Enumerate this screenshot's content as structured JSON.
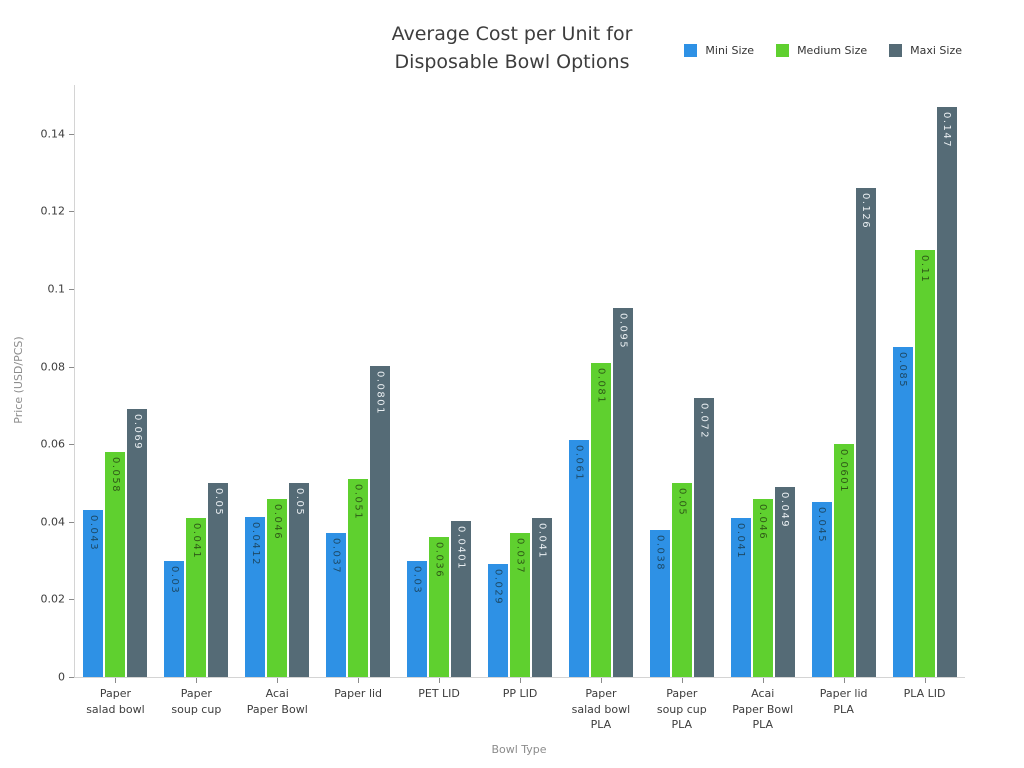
{
  "chart_data": {
    "type": "bar",
    "title_lines": [
      "Average Cost per Unit for",
      "Disposable Bowl Options"
    ],
    "xlabel": "Bowl Type",
    "ylabel": "Price (USD/PCS)",
    "grid": false,
    "legend_position": "top-right",
    "ylim": [
      0,
      0.1526
    ],
    "yticks": {
      "values": [
        0,
        0.02,
        0.04,
        0.06,
        0.08,
        0.1,
        0.12,
        0.14
      ],
      "labels": [
        "0",
        "0.02",
        "0.04",
        "0.06",
        "0.08",
        "0.1",
        "0.12",
        "0.14"
      ]
    },
    "categories": [
      "Paper\nsalad bowl",
      "Paper\nsoup cup",
      "Acai\nPaper Bowl",
      "Paper lid",
      "PET LID",
      "PP LID",
      "Paper\nsalad bowl\nPLA",
      "Paper\nsoup cup\nPLA",
      "Acai\nPaper Bowl\nPLA",
      "Paper lid\nPLA",
      "PLA LID"
    ],
    "series": [
      {
        "name": "Mini Size",
        "color": "#2E91E5",
        "label_color": "#1C4966",
        "values": [
          0.043,
          0.03,
          0.0412,
          0.037,
          0.03,
          0.029,
          0.061,
          0.038,
          0.041,
          0.045,
          0.085
        ],
        "labels": [
          "0.043",
          "0.03",
          "0.0412",
          "0.037",
          "0.03",
          "0.029",
          "0.061",
          "0.038",
          "0.041",
          "0.045",
          "0.085"
        ]
      },
      {
        "name": "Medium Size",
        "color": "#5FD02F",
        "label_color": "#2F5A17",
        "values": [
          0.058,
          0.041,
          0.046,
          0.051,
          0.036,
          0.037,
          0.081,
          0.05,
          0.046,
          0.0601,
          0.11
        ],
        "labels": [
          "0.058",
          "0.041",
          "0.046",
          "0.051",
          "0.036",
          "0.037",
          "0.081",
          "0.05",
          "0.046",
          "0.0601",
          "0.11"
        ]
      },
      {
        "name": "Maxi Size",
        "color": "#556B76",
        "label_color": "#EAEFF2",
        "values": [
          0.069,
          0.05,
          0.05,
          0.0801,
          0.0401,
          0.041,
          0.095,
          0.072,
          0.049,
          0.126,
          0.147
        ],
        "labels": [
          "0.069",
          "0.05",
          "0.05",
          "0.0801",
          "0.0401",
          "0.041",
          "0.095",
          "0.072",
          "0.049",
          "0.126",
          "0.147"
        ]
      }
    ]
  }
}
